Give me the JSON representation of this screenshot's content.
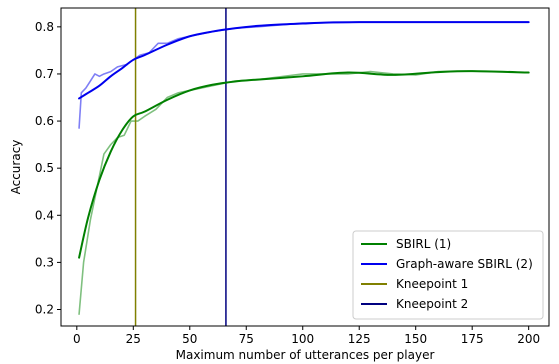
{
  "chart_data": {
    "type": "line",
    "title": "",
    "xlabel": "Maximum number of utterances per player",
    "ylabel": "Accuracy",
    "xlim": [
      -7,
      209
    ],
    "ylim": [
      0.165,
      0.84
    ],
    "xticks": [
      0,
      25,
      50,
      75,
      100,
      125,
      150,
      175,
      200
    ],
    "yticks": [
      0.2,
      0.3,
      0.4,
      0.5,
      0.6,
      0.7,
      0.8
    ],
    "grid": false,
    "legend_position": "lower-right",
    "series": [
      {
        "name": "SBIRL (1)",
        "color": "#008000",
        "style": "smooth",
        "x": [
          1,
          5,
          10,
          15,
          20,
          25,
          30,
          40,
          50,
          60,
          70,
          80,
          100,
          120,
          140,
          160,
          175,
          200
        ],
        "y": [
          0.31,
          0.395,
          0.475,
          0.535,
          0.58,
          0.61,
          0.62,
          0.645,
          0.665,
          0.677,
          0.684,
          0.688,
          0.695,
          0.703,
          0.698,
          0.704,
          0.706,
          0.703
        ]
      },
      {
        "name": "SBIRL (1) raw",
        "color": "#7fc07f",
        "style": "raw",
        "x": [
          1,
          3,
          6,
          9,
          12,
          15,
          18,
          21,
          24,
          27,
          30,
          35,
          40,
          45,
          50,
          60,
          70,
          80,
          100,
          110,
          120,
          130,
          140,
          150,
          160,
          175,
          200
        ],
        "y": [
          0.19,
          0.3,
          0.39,
          0.46,
          0.53,
          0.55,
          0.565,
          0.57,
          0.6,
          0.6,
          0.61,
          0.625,
          0.65,
          0.66,
          0.665,
          0.675,
          0.685,
          0.688,
          0.7,
          0.7,
          0.7,
          0.705,
          0.7,
          0.698,
          0.705,
          0.706,
          0.703
        ]
      },
      {
        "name": "Graph-aware SBIRL (2)",
        "color": "#0000ee",
        "style": "smooth",
        "x": [
          1,
          5,
          10,
          15,
          20,
          25,
          30,
          40,
          50,
          60,
          70,
          80,
          90,
          100,
          110,
          125,
          150,
          175,
          200
        ],
        "y": [
          0.648,
          0.66,
          0.675,
          0.695,
          0.712,
          0.73,
          0.74,
          0.762,
          0.78,
          0.79,
          0.797,
          0.802,
          0.805,
          0.807,
          0.809,
          0.81,
          0.81,
          0.81,
          0.81
        ]
      },
      {
        "name": "Graph-aware SBIRL (2) raw",
        "color": "#7f7ff5",
        "style": "raw",
        "x": [
          1,
          2,
          4,
          6,
          8,
          10,
          12,
          15,
          18,
          22,
          25,
          28,
          32,
          36,
          40,
          45,
          50,
          55,
          60,
          70,
          80,
          100,
          125,
          150,
          200
        ],
        "y": [
          0.585,
          0.66,
          0.67,
          0.685,
          0.7,
          0.695,
          0.7,
          0.705,
          0.715,
          0.72,
          0.73,
          0.74,
          0.745,
          0.765,
          0.765,
          0.775,
          0.78,
          0.785,
          0.79,
          0.797,
          0.8,
          0.808,
          0.81,
          0.81,
          0.81
        ]
      },
      {
        "name": "Kneepoint 1",
        "color": "#808000",
        "style": "vline",
        "x": 26
      },
      {
        "name": "Kneepoint 2",
        "color": "#000080",
        "style": "vline",
        "x": 66
      }
    ],
    "legend": [
      {
        "label": "SBIRL (1)",
        "color": "#008000"
      },
      {
        "label": "Graph-aware SBIRL (2)",
        "color": "#0000ee"
      },
      {
        "label": "Kneepoint 1",
        "color": "#808000"
      },
      {
        "label": "Kneepoint 2",
        "color": "#000080"
      }
    ]
  }
}
